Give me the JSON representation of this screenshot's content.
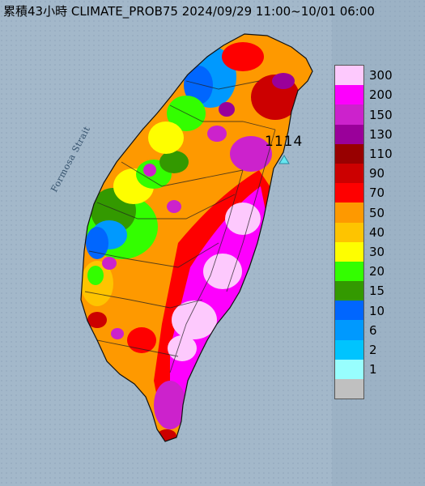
{
  "title": "累積43小時 CLIMATE_PROB75 2024/09/29 11:00~10/01 06:00",
  "sea_label": "Formosa Strait",
  "station": {
    "value": "1114",
    "marker_color": "#66e6f0"
  },
  "legend": [
    {
      "label": "300",
      "color": "#fdc9fd"
    },
    {
      "label": "200",
      "color": "#fd00fd"
    },
    {
      "label": "150",
      "color": "#cc22cc"
    },
    {
      "label": "130",
      "color": "#9a009a"
    },
    {
      "label": "110",
      "color": "#980000"
    },
    {
      "label": "90",
      "color": "#cc0000"
    },
    {
      "label": "70",
      "color": "#fe0000"
    },
    {
      "label": "50",
      "color": "#fe9900"
    },
    {
      "label": "40",
      "color": "#fec400"
    },
    {
      "label": "30",
      "color": "#fefe00"
    },
    {
      "label": "20",
      "color": "#33fe00"
    },
    {
      "label": "15",
      "color": "#339900"
    },
    {
      "label": "10",
      "color": "#0066fe"
    },
    {
      "label": "6",
      "color": "#0099fe"
    },
    {
      "label": "2",
      "color": "#00c4fe"
    },
    {
      "label": "1",
      "color": "#98fefe"
    },
    {
      "label": "",
      "color": "#c0c0c0"
    }
  ]
}
